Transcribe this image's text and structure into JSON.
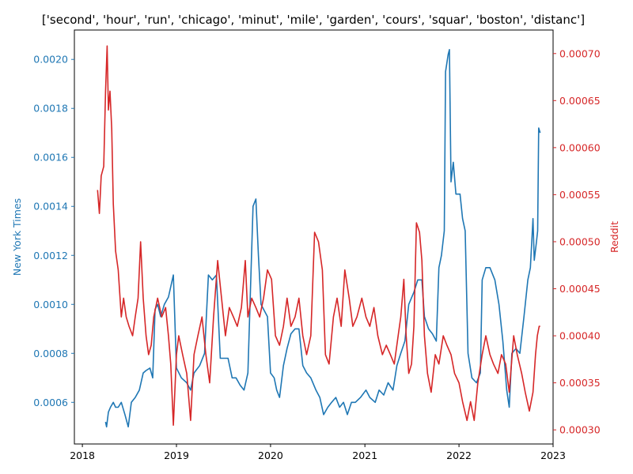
{
  "chart_data": {
    "type": "line",
    "title": "['second', 'hour', 'run', 'chicago', 'minut', 'mile', 'garden', 'cours', 'squar', 'boston', 'distanc']",
    "xlabel": "",
    "x_ticks": [
      "2018",
      "2019",
      "2020",
      "2021",
      "2022",
      "2023"
    ],
    "xlim": [
      "2017-12-01",
      "2023-01-01"
    ],
    "grid": false,
    "legend": "none",
    "left_axis": {
      "label": "New York Times",
      "color": "#1f77b4",
      "ylim": [
        0.00043,
        0.00212
      ],
      "ticks": [
        "0.0006",
        "0.0008",
        "0.0010",
        "0.0012",
        "0.0014",
        "0.0016",
        "0.0018",
        "0.0020"
      ]
    },
    "right_axis": {
      "label": "Reddit",
      "color": "#d62728",
      "ylim": [
        0.000285,
        0.000725
      ],
      "ticks": [
        "0.00030",
        "0.00035",
        "0.00040",
        "0.00045",
        "0.00050",
        "0.00055",
        "0.00060",
        "0.00065",
        "0.00070"
      ]
    },
    "series": [
      {
        "name": "New York Times",
        "axis": "left",
        "color": "#1f77b4",
        "points": [
          [
            "2018-04-01",
            0.00052
          ],
          [
            "2018-04-05",
            0.0005
          ],
          [
            "2018-04-12",
            0.00056
          ],
          [
            "2018-04-20",
            0.00058
          ],
          [
            "2018-05-01",
            0.0006
          ],
          [
            "2018-05-10",
            0.00058
          ],
          [
            "2018-05-20",
            0.00058
          ],
          [
            "2018-06-01",
            0.0006
          ],
          [
            "2018-06-15",
            0.00055
          ],
          [
            "2018-06-28",
            0.0005
          ],
          [
            "2018-07-10",
            0.0006
          ],
          [
            "2018-07-25",
            0.00062
          ],
          [
            "2018-08-10",
            0.00065
          ],
          [
            "2018-08-25",
            0.00072
          ],
          [
            "2018-09-05",
            0.00073
          ],
          [
            "2018-09-20",
            0.00074
          ],
          [
            "2018-10-01",
            0.0007
          ],
          [
            "2018-10-10",
            0.00098
          ],
          [
            "2018-10-20",
            0.001
          ],
          [
            "2018-11-01",
            0.00095
          ],
          [
            "2018-11-15",
            0.001
          ],
          [
            "2018-12-01",
            0.00103
          ],
          [
            "2018-12-20",
            0.00112
          ],
          [
            "2019-01-01",
            0.00074
          ],
          [
            "2019-01-20",
            0.0007
          ],
          [
            "2019-02-10",
            0.00068
          ],
          [
            "2019-02-25",
            0.00065
          ],
          [
            "2019-03-10",
            0.00072
          ],
          [
            "2019-04-01",
            0.00075
          ],
          [
            "2019-04-20",
            0.0008
          ],
          [
            "2019-05-05",
            0.00112
          ],
          [
            "2019-05-20",
            0.0011
          ],
          [
            "2019-06-05",
            0.00112
          ],
          [
            "2019-06-20",
            0.00078
          ],
          [
            "2019-07-05",
            0.00078
          ],
          [
            "2019-07-20",
            0.00078
          ],
          [
            "2019-08-05",
            0.0007
          ],
          [
            "2019-08-20",
            0.0007
          ],
          [
            "2019-09-05",
            0.00067
          ],
          [
            "2019-09-20",
            0.00065
          ],
          [
            "2019-10-05",
            0.00072
          ],
          [
            "2019-10-25",
            0.0014
          ],
          [
            "2019-11-05",
            0.00143
          ],
          [
            "2019-11-15",
            0.0012
          ],
          [
            "2019-11-25",
            0.001
          ],
          [
            "2019-12-05",
            0.00098
          ],
          [
            "2019-12-20",
            0.00095
          ],
          [
            "2020-01-01",
            0.00072
          ],
          [
            "2020-01-15",
            0.0007
          ],
          [
            "2020-01-25",
            0.00065
          ],
          [
            "2020-02-05",
            0.00062
          ],
          [
            "2020-02-20",
            0.00075
          ],
          [
            "2020-03-05",
            0.00082
          ],
          [
            "2020-03-20",
            0.00088
          ],
          [
            "2020-04-05",
            0.0009
          ],
          [
            "2020-04-20",
            0.0009
          ],
          [
            "2020-05-05",
            0.00075
          ],
          [
            "2020-05-20",
            0.00072
          ],
          [
            "2020-06-05",
            0.0007
          ],
          [
            "2020-06-25",
            0.00065
          ],
          [
            "2020-07-10",
            0.00062
          ],
          [
            "2020-07-25",
            0.00055
          ],
          [
            "2020-08-10",
            0.00058
          ],
          [
            "2020-08-25",
            0.0006
          ],
          [
            "2020-09-10",
            0.00062
          ],
          [
            "2020-09-25",
            0.00058
          ],
          [
            "2020-10-10",
            0.0006
          ],
          [
            "2020-10-25",
            0.00055
          ],
          [
            "2020-11-10",
            0.0006
          ],
          [
            "2020-11-25",
            0.0006
          ],
          [
            "2020-12-15",
            0.00062
          ],
          [
            "2021-01-05",
            0.00065
          ],
          [
            "2021-01-20",
            0.00062
          ],
          [
            "2021-02-10",
            0.0006
          ],
          [
            "2021-02-25",
            0.00065
          ],
          [
            "2021-03-15",
            0.00063
          ],
          [
            "2021-04-01",
            0.00068
          ],
          [
            "2021-04-20",
            0.00065
          ],
          [
            "2021-05-05",
            0.00075
          ],
          [
            "2021-05-20",
            0.0008
          ],
          [
            "2021-06-05",
            0.00085
          ],
          [
            "2021-06-20",
            0.001
          ],
          [
            "2021-07-10",
            0.00105
          ],
          [
            "2021-07-25",
            0.0011
          ],
          [
            "2021-08-10",
            0.0011
          ],
          [
            "2021-08-20",
            0.00095
          ],
          [
            "2021-09-05",
            0.0009
          ],
          [
            "2021-09-20",
            0.00088
          ],
          [
            "2021-10-05",
            0.00085
          ],
          [
            "2021-10-15",
            0.00115
          ],
          [
            "2021-10-25",
            0.0012
          ],
          [
            "2021-11-05",
            0.0013
          ],
          [
            "2021-11-10",
            0.00195
          ],
          [
            "2021-11-20",
            0.00202
          ],
          [
            "2021-11-25",
            0.00204
          ],
          [
            "2021-12-01",
            0.0015
          ],
          [
            "2021-12-10",
            0.00158
          ],
          [
            "2021-12-20",
            0.00145
          ],
          [
            "2022-01-05",
            0.00145
          ],
          [
            "2022-01-15",
            0.00135
          ],
          [
            "2022-01-25",
            0.0013
          ],
          [
            "2022-02-05",
            0.0008
          ],
          [
            "2022-02-20",
            0.0007
          ],
          [
            "2022-03-10",
            0.00068
          ],
          [
            "2022-03-25",
            0.00072
          ],
          [
            "2022-04-01",
            0.0011
          ],
          [
            "2022-04-15",
            0.00115
          ],
          [
            "2022-05-01",
            0.00115
          ],
          [
            "2022-05-20",
            0.0011
          ],
          [
            "2022-06-05",
            0.001
          ],
          [
            "2022-06-20",
            0.00085
          ],
          [
            "2022-07-05",
            0.00065
          ],
          [
            "2022-07-15",
            0.00058
          ],
          [
            "2022-07-25",
            0.0008
          ],
          [
            "2022-08-10",
            0.00082
          ],
          [
            "2022-08-25",
            0.0008
          ],
          [
            "2022-09-10",
            0.00095
          ],
          [
            "2022-09-25",
            0.0011
          ],
          [
            "2022-10-05",
            0.00115
          ],
          [
            "2022-10-15",
            0.00135
          ],
          [
            "2022-10-20",
            0.00118
          ],
          [
            "2022-10-28",
            0.00125
          ],
          [
            "2022-11-02",
            0.0013
          ],
          [
            "2022-11-06",
            0.00172
          ],
          [
            "2022-11-12",
            0.0017
          ]
        ]
      },
      {
        "name": "Reddit",
        "axis": "right",
        "color": "#d62728",
        "points": [
          [
            "2018-03-01",
            0.000555
          ],
          [
            "2018-03-08",
            0.00053
          ],
          [
            "2018-03-15",
            0.00057
          ],
          [
            "2018-03-25",
            0.00058
          ],
          [
            "2018-04-01",
            0.00066
          ],
          [
            "2018-04-07",
            0.000708
          ],
          [
            "2018-04-12",
            0.00064
          ],
          [
            "2018-04-18",
            0.00066
          ],
          [
            "2018-04-25",
            0.00062
          ],
          [
            "2018-05-01",
            0.00054
          ],
          [
            "2018-05-10",
            0.00049
          ],
          [
            "2018-05-20",
            0.00047
          ],
          [
            "2018-06-01",
            0.00042
          ],
          [
            "2018-06-10",
            0.00044
          ],
          [
            "2018-06-20",
            0.00042
          ],
          [
            "2018-07-01",
            0.00041
          ],
          [
            "2018-07-15",
            0.0004
          ],
          [
            "2018-07-25",
            0.00042
          ],
          [
            "2018-08-05",
            0.00044
          ],
          [
            "2018-08-15",
            0.0005
          ],
          [
            "2018-08-25",
            0.00044
          ],
          [
            "2018-09-05",
            0.0004
          ],
          [
            "2018-09-15",
            0.00038
          ],
          [
            "2018-09-25",
            0.00039
          ],
          [
            "2018-10-05",
            0.00042
          ],
          [
            "2018-10-20",
            0.00044
          ],
          [
            "2018-11-05",
            0.00042
          ],
          [
            "2018-11-20",
            0.00043
          ],
          [
            "2018-12-01",
            0.0004
          ],
          [
            "2018-12-10",
            0.00037
          ],
          [
            "2018-12-20",
            0.000305
          ],
          [
            "2019-01-01",
            0.00038
          ],
          [
            "2019-01-10",
            0.0004
          ],
          [
            "2019-01-25",
            0.00038
          ],
          [
            "2019-02-10",
            0.00036
          ],
          [
            "2019-02-25",
            0.00031
          ],
          [
            "2019-03-10",
            0.00038
          ],
          [
            "2019-03-25",
            0.0004
          ],
          [
            "2019-04-10",
            0.00042
          ],
          [
            "2019-04-25",
            0.00038
          ],
          [
            "2019-05-10",
            0.00035
          ],
          [
            "2019-05-25",
            0.00042
          ],
          [
            "2019-06-10",
            0.00048
          ],
          [
            "2019-06-25",
            0.00044
          ],
          [
            "2019-07-10",
            0.0004
          ],
          [
            "2019-07-25",
            0.00043
          ],
          [
            "2019-08-10",
            0.00042
          ],
          [
            "2019-08-25",
            0.00041
          ],
          [
            "2019-09-10",
            0.00043
          ],
          [
            "2019-09-25",
            0.00048
          ],
          [
            "2019-10-05",
            0.00042
          ],
          [
            "2019-10-20",
            0.00044
          ],
          [
            "2019-11-05",
            0.00043
          ],
          [
            "2019-11-20",
            0.00042
          ],
          [
            "2019-12-05",
            0.00044
          ],
          [
            "2019-12-20",
            0.00047
          ],
          [
            "2020-01-05",
            0.00046
          ],
          [
            "2020-01-20",
            0.0004
          ],
          [
            "2020-02-05",
            0.00039
          ],
          [
            "2020-02-20",
            0.00041
          ],
          [
            "2020-03-05",
            0.00044
          ],
          [
            "2020-03-20",
            0.00041
          ],
          [
            "2020-04-05",
            0.00042
          ],
          [
            "2020-04-20",
            0.00044
          ],
          [
            "2020-05-05",
            0.0004
          ],
          [
            "2020-05-20",
            0.00038
          ],
          [
            "2020-06-05",
            0.0004
          ],
          [
            "2020-06-20",
            0.00051
          ],
          [
            "2020-07-05",
            0.0005
          ],
          [
            "2020-07-20",
            0.00047
          ],
          [
            "2020-08-01",
            0.00038
          ],
          [
            "2020-08-15",
            0.00037
          ],
          [
            "2020-09-01",
            0.00042
          ],
          [
            "2020-09-15",
            0.00044
          ],
          [
            "2020-10-01",
            0.00041
          ],
          [
            "2020-10-15",
            0.00047
          ],
          [
            "2020-11-01",
            0.00044
          ],
          [
            "2020-11-15",
            0.00041
          ],
          [
            "2020-12-01",
            0.00042
          ],
          [
            "2020-12-20",
            0.00044
          ],
          [
            "2021-01-05",
            0.00042
          ],
          [
            "2021-01-20",
            0.00041
          ],
          [
            "2021-02-05",
            0.00043
          ],
          [
            "2021-02-20",
            0.0004
          ],
          [
            "2021-03-10",
            0.00038
          ],
          [
            "2021-03-25",
            0.00039
          ],
          [
            "2021-04-10",
            0.00038
          ],
          [
            "2021-04-25",
            0.00037
          ],
          [
            "2021-05-10",
            0.0004
          ],
          [
            "2021-05-20",
            0.00042
          ],
          [
            "2021-06-01",
            0.00046
          ],
          [
            "2021-06-10",
            0.0004
          ],
          [
            "2021-06-20",
            0.00036
          ],
          [
            "2021-07-01",
            0.00037
          ],
          [
            "2021-07-10",
            0.00041
          ],
          [
            "2021-07-20",
            0.00052
          ],
          [
            "2021-08-01",
            0.00051
          ],
          [
            "2021-08-10",
            0.00048
          ],
          [
            "2021-08-20",
            0.0004
          ],
          [
            "2021-09-01",
            0.00036
          ],
          [
            "2021-09-15",
            0.00034
          ],
          [
            "2021-10-01",
            0.00038
          ],
          [
            "2021-10-15",
            0.00037
          ],
          [
            "2021-11-01",
            0.0004
          ],
          [
            "2021-11-15",
            0.00039
          ],
          [
            "2021-12-01",
            0.00038
          ],
          [
            "2021-12-15",
            0.00036
          ],
          [
            "2022-01-01",
            0.00035
          ],
          [
            "2022-01-15",
            0.00033
          ],
          [
            "2022-02-01",
            0.00031
          ],
          [
            "2022-02-15",
            0.00033
          ],
          [
            "2022-03-01",
            0.00031
          ],
          [
            "2022-03-15",
            0.00035
          ],
          [
            "2022-04-01",
            0.00038
          ],
          [
            "2022-04-15",
            0.0004
          ],
          [
            "2022-05-01",
            0.00038
          ],
          [
            "2022-05-15",
            0.00037
          ],
          [
            "2022-06-01",
            0.00036
          ],
          [
            "2022-06-15",
            0.00038
          ],
          [
            "2022-07-01",
            0.00037
          ],
          [
            "2022-07-15",
            0.00034
          ],
          [
            "2022-08-01",
            0.0004
          ],
          [
            "2022-08-15",
            0.00038
          ],
          [
            "2022-09-01",
            0.00036
          ],
          [
            "2022-09-15",
            0.00034
          ],
          [
            "2022-10-01",
            0.00032
          ],
          [
            "2022-10-15",
            0.00034
          ],
          [
            "2022-10-25",
            0.00038
          ],
          [
            "2022-11-01",
            0.0004
          ],
          [
            "2022-11-08",
            0.00041
          ],
          [
            "2022-11-12",
            0.00041
          ]
        ]
      }
    ]
  }
}
